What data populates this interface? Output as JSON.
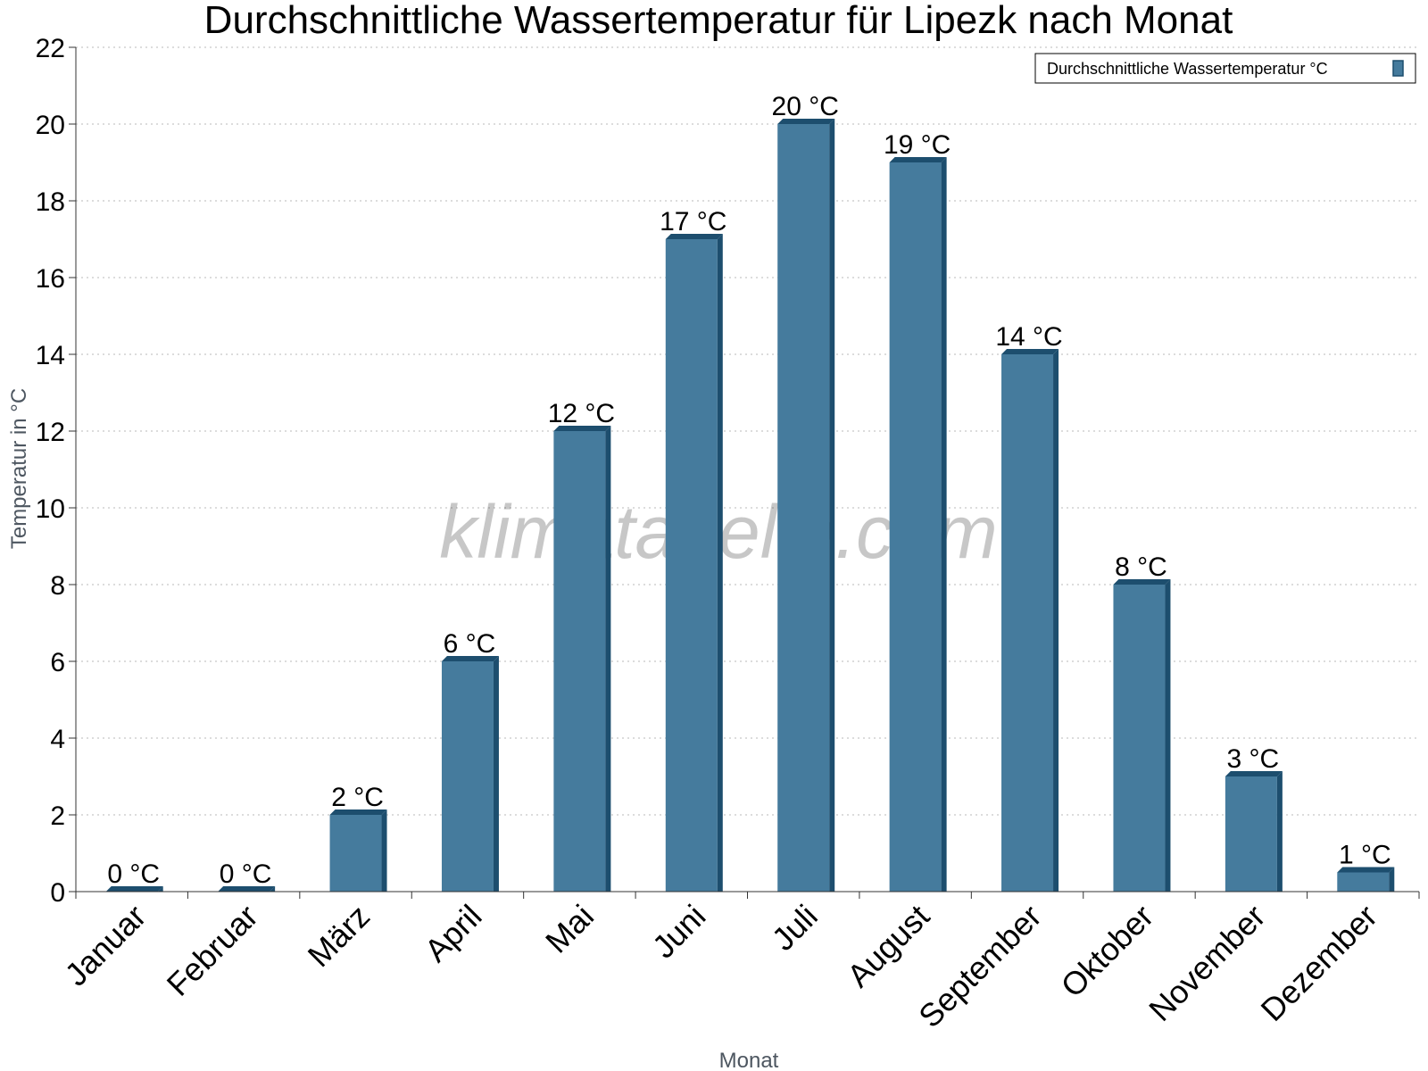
{
  "chart_data": {
    "type": "bar",
    "title": "Durchschnittliche Wassertemperatur für Lipezk nach Monat",
    "xlabel": "Monat",
    "ylabel": "Temperatur in °C",
    "categories": [
      "Januar",
      "Februar",
      "März",
      "April",
      "Mai",
      "Juni",
      "Juli",
      "August",
      "September",
      "Oktober",
      "November",
      "Dezember"
    ],
    "series": [
      {
        "name": "Durchschnittliche Wassertemperatur °C",
        "values": [
          0,
          0,
          2,
          6,
          12,
          17,
          20,
          19,
          14,
          8,
          3,
          0.5
        ],
        "data_labels": [
          "0 °C",
          "0 °C",
          "2 °C",
          "6 °C",
          "12 °C",
          "17 °C",
          "20 °C",
          "19 °C",
          "14 °C",
          "8 °C",
          "3 °C",
          "1 °C"
        ],
        "color": "#457b9d",
        "edge_color": "#1d4e6e"
      }
    ],
    "ylim": [
      0,
      22
    ],
    "yticks": [
      0,
      2,
      4,
      6,
      8,
      10,
      12,
      14,
      16,
      18,
      20,
      22
    ],
    "grid": true,
    "legend_position": "top-right"
  },
  "watermark": "klimatabelle.com"
}
